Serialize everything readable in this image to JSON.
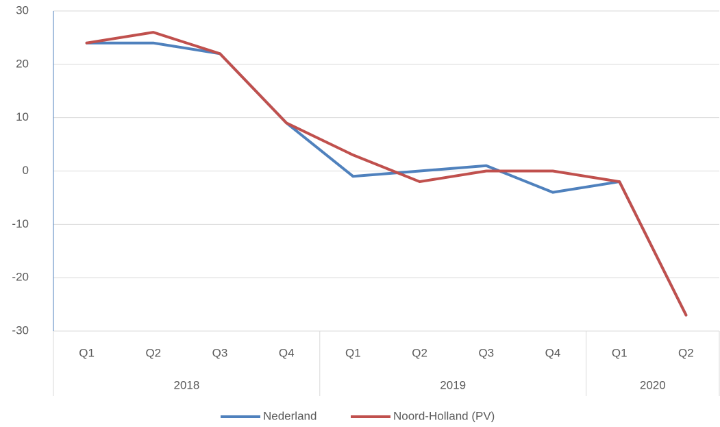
{
  "chart_data": {
    "type": "line",
    "category_groups": [
      {
        "name": "2018",
        "categories": [
          "Q1",
          "Q2",
          "Q3",
          "Q4"
        ]
      },
      {
        "name": "2019",
        "categories": [
          "Q1",
          "Q2",
          "Q3",
          "Q4"
        ]
      },
      {
        "name": "2020",
        "categories": [
          "Q1",
          "Q2"
        ]
      }
    ],
    "series": [
      {
        "name": "Nederland",
        "color": "#4f81bd",
        "values": [
          24,
          24,
          22,
          9,
          -1,
          0,
          1,
          -4,
          -2,
          -27
        ]
      },
      {
        "name": "Noord-Holland (PV)",
        "color": "#c0504d",
        "values": [
          24,
          26,
          22,
          9,
          3,
          -2,
          0,
          0,
          -2,
          -27
        ]
      }
    ],
    "ylim": [
      -30,
      30
    ],
    "yticks": [
      -30,
      -20,
      -10,
      0,
      10,
      20,
      30
    ],
    "grid": true,
    "legend": "bottom"
  }
}
